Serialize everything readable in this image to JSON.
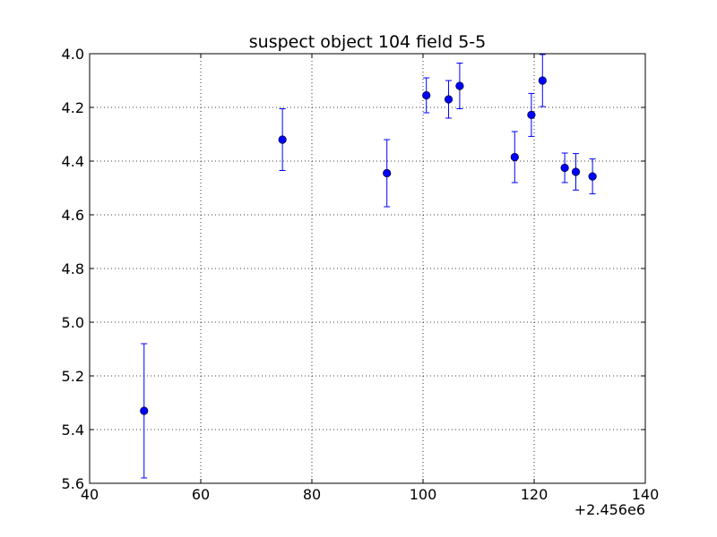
{
  "chart_data": {
    "type": "scatter",
    "title": "suspect object 104 field 5-5",
    "xlabel": "",
    "ylabel": "",
    "x_offset_label": "+2.456e6",
    "xlim": [
      40,
      140
    ],
    "ylim": [
      4.0,
      5.6
    ],
    "y_inverted": true,
    "grid": true,
    "legend": "none",
    "marker_color": "#0000ff",
    "x_ticks": [
      "40",
      "60",
      "80",
      "100",
      "120",
      "140"
    ],
    "y_ticks": [
      "4.0",
      "4.2",
      "4.4",
      "4.6",
      "4.8",
      "5.0",
      "5.2",
      "5.4",
      "5.6"
    ],
    "points": [
      {
        "x": 2456049.8,
        "y": 5.33,
        "err": 0.25
      },
      {
        "x": 2456074.7,
        "y": 4.32,
        "err": 0.115
      },
      {
        "x": 2456093.5,
        "y": 4.445,
        "err": 0.125
      },
      {
        "x": 2456100.6,
        "y": 4.155,
        "err": 0.065
      },
      {
        "x": 2456104.6,
        "y": 4.17,
        "err": 0.07
      },
      {
        "x": 2456106.6,
        "y": 4.12,
        "err": 0.085
      },
      {
        "x": 2456116.5,
        "y": 4.385,
        "err": 0.095
      },
      {
        "x": 2456119.5,
        "y": 4.228,
        "err": 0.08
      },
      {
        "x": 2456121.5,
        "y": 4.1,
        "err": 0.097
      },
      {
        "x": 2456125.5,
        "y": 4.425,
        "err": 0.055
      },
      {
        "x": 2456127.5,
        "y": 4.44,
        "err": 0.068
      },
      {
        "x": 2456130.5,
        "y": 4.457,
        "err": 0.065
      }
    ]
  }
}
